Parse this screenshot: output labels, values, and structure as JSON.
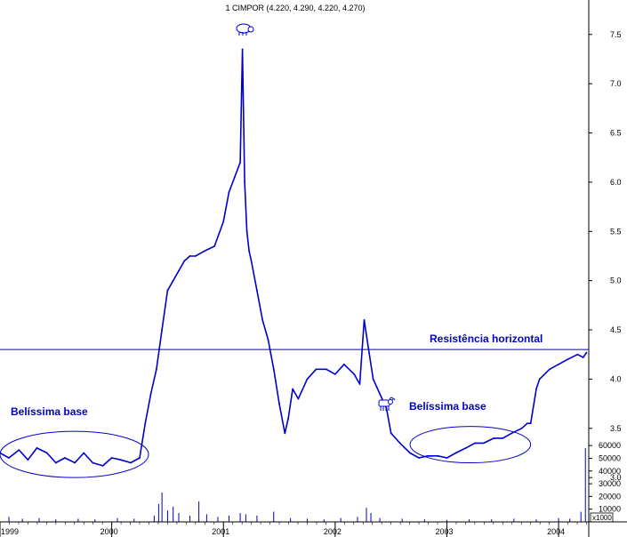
{
  "chart_data": {
    "type": "line",
    "title": "1 CIMPOR (4.220, 4.290, 4.220, 4.270)",
    "price_axis": {
      "ylim": [
        2.55,
        7.85
      ],
      "ticks": [
        "3.0",
        "3.5",
        "4.0",
        "4.5",
        "5.0",
        "5.5",
        "6.0",
        "6.5",
        "7.0",
        "7.5"
      ]
    },
    "volume_axis": {
      "ylim": [
        0,
        65000
      ],
      "ticks": [
        "10000",
        "20000",
        "30000",
        "40000",
        "50000",
        "60000"
      ],
      "unit": "x1000"
    },
    "x_axis": {
      "range": [
        1999.0,
        2004.27
      ],
      "ticks": [
        "1999",
        "2000",
        "2001",
        "2002",
        "2003",
        "2004"
      ]
    },
    "series": [
      {
        "color": "#0000cc",
        "x": [
          1999.0,
          1999.08,
          1999.17,
          1999.25,
          1999.33,
          1999.42,
          1999.5,
          1999.58,
          1999.67,
          1999.75,
          1999.83,
          1999.92,
          2000.0,
          2000.08,
          2000.17,
          2000.25,
          2000.3,
          2000.35,
          2000.4,
          2000.45,
          2000.5,
          2000.55,
          2000.6,
          2000.65,
          2000.7,
          2000.75,
          2000.83,
          2000.92,
          2001.0,
          2001.05,
          2001.1,
          2001.15,
          2001.17,
          2001.19,
          2001.21,
          2001.23,
          2001.25,
          2001.3,
          2001.35,
          2001.4,
          2001.45,
          2001.5,
          2001.55,
          2001.58,
          2001.62,
          2001.67,
          2001.75,
          2001.83,
          2001.92,
          2002.0,
          2002.08,
          2002.17,
          2002.22,
          2002.26,
          2002.3,
          2002.34,
          2002.4,
          2002.46,
          2002.5,
          2002.58,
          2002.67,
          2002.75,
          2002.83,
          2002.92,
          2003.0,
          2003.08,
          2003.17,
          2003.25,
          2003.33,
          2003.42,
          2003.5,
          2003.58,
          2003.67,
          2003.72,
          2003.75,
          2003.8,
          2003.83,
          2003.92,
          2004.0,
          2004.08,
          2004.17,
          2004.22,
          2004.25
        ],
        "y": [
          3.25,
          3.2,
          3.28,
          3.18,
          3.3,
          3.25,
          3.15,
          3.2,
          3.15,
          3.25,
          3.15,
          3.12,
          3.2,
          3.18,
          3.15,
          3.2,
          3.55,
          3.85,
          4.1,
          4.5,
          4.9,
          5.0,
          5.1,
          5.2,
          5.25,
          5.25,
          5.3,
          5.35,
          5.6,
          5.9,
          6.05,
          6.2,
          7.35,
          6.0,
          5.5,
          5.3,
          5.2,
          4.9,
          4.6,
          4.4,
          4.1,
          3.75,
          3.45,
          3.6,
          3.9,
          3.8,
          4.0,
          4.1,
          4.1,
          4.05,
          4.15,
          4.05,
          3.95,
          4.6,
          4.3,
          4.0,
          3.85,
          3.7,
          3.45,
          3.35,
          3.25,
          3.2,
          3.22,
          3.22,
          3.2,
          3.25,
          3.3,
          3.35,
          3.35,
          3.4,
          3.4,
          3.45,
          3.5,
          3.55,
          3.55,
          3.9,
          4.0,
          4.1,
          4.15,
          4.2,
          4.25,
          4.22,
          4.27
        ]
      }
    ],
    "volume": {
      "color": "#0000cc",
      "x": [
        1999.08,
        1999.2,
        1999.35,
        1999.5,
        1999.7,
        1999.85,
        2000.05,
        2000.2,
        2000.38,
        2000.42,
        2000.45,
        2000.5,
        2000.55,
        2000.6,
        2000.7,
        2000.78,
        2000.85,
        2000.95,
        2001.05,
        2001.15,
        2001.2,
        2001.3,
        2001.45,
        2001.6,
        2001.75,
        2001.9,
        2002.05,
        2002.2,
        2002.28,
        2002.32,
        2002.4,
        2002.6,
        2002.8,
        2003.0,
        2003.2,
        2003.4,
        2003.6,
        2003.8,
        2004.0,
        2004.1,
        2004.2,
        2004.24
      ],
      "values": [
        4000,
        2500,
        3000,
        2000,
        2500,
        2000,
        3000,
        2500,
        5000,
        14000,
        23000,
        9000,
        12000,
        7000,
        5000,
        16000,
        6000,
        4000,
        5000,
        7000,
        6000,
        5000,
        8000,
        3000,
        2500,
        2000,
        3000,
        4000,
        11000,
        7000,
        3000,
        2500,
        2000,
        1500,
        2000,
        2000,
        2500,
        2000,
        3000,
        2500,
        8000,
        58000
      ]
    },
    "annotations": [
      {
        "text": "Resistência horizontal",
        "type": "horizontal_line",
        "y": 4.3
      },
      {
        "text": "Belíssima base",
        "type": "ellipse",
        "x_range": [
          1999.0,
          2000.33
        ],
        "y_range": [
          3.0,
          3.47
        ]
      },
      {
        "text": "Belíssima base",
        "type": "ellipse",
        "x_range": [
          2002.67,
          2003.75
        ],
        "y_range": [
          3.15,
          3.52
        ]
      }
    ],
    "grid": false
  }
}
